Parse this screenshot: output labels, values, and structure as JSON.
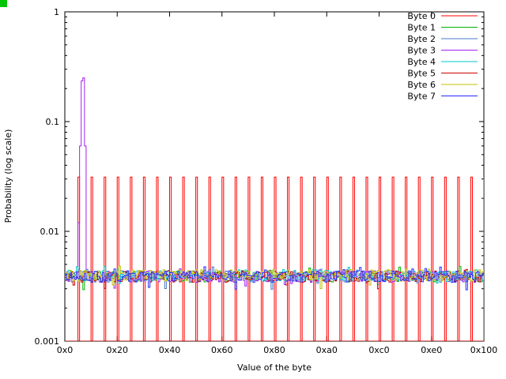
{
  "chart_data": {
    "type": "line",
    "title": "",
    "xlabel": "Value of the byte",
    "ylabel": "Probability (log scale)",
    "x_range": [
      0,
      256
    ],
    "y_log_range": [
      0.001,
      1
    ],
    "grid": false,
    "legend_position": "top-right-inside",
    "x_ticks": [
      {
        "v": 0,
        "label": "0x0"
      },
      {
        "v": 32,
        "label": "0x20"
      },
      {
        "v": 64,
        "label": "0x40"
      },
      {
        "v": 96,
        "label": "0x60"
      },
      {
        "v": 128,
        "label": "0x80"
      },
      {
        "v": 160,
        "label": "0xa0"
      },
      {
        "v": 192,
        "label": "0xc0"
      },
      {
        "v": 224,
        "label": "0xe0"
      },
      {
        "v": 256,
        "label": "0x100"
      }
    ],
    "y_ticks": [
      {
        "v": 1,
        "label": "1"
      },
      {
        "v": 0.1,
        "label": "0.1"
      },
      {
        "v": 0.01,
        "label": "0.01"
      },
      {
        "v": 0.001,
        "label": "0.001"
      }
    ],
    "series": [
      {
        "name": "Byte 0",
        "color": "#ff0000",
        "model": "spikes",
        "period": 8,
        "peak": 0.03125,
        "floor": 0.0006,
        "note": "probability 1/32 on every multiple of 8, ~0 elsewhere"
      },
      {
        "name": "Byte 1",
        "color": "#00b400",
        "model": "uniform-noise",
        "mean": 0.0039,
        "noise": 0.12,
        "seed": 11
      },
      {
        "name": "Byte 2",
        "color": "#4878c8",
        "model": "uniform-noise",
        "mean": 0.0039,
        "noise": 0.12,
        "seed": 22
      },
      {
        "name": "Byte 3",
        "color": "#a020f0",
        "model": "uniform-noise",
        "mean": 0.0039,
        "noise": 0.12,
        "seed": 33,
        "overrides": {
          "8": 0.012,
          "9": 0.06,
          "10": 0.235,
          "11": 0.25,
          "12": 0.06,
          "13": 0.0045
        },
        "note": "sharp peak ~0.25 around byte value 0x0a with shoulders at ~0.06"
      },
      {
        "name": "Byte 4",
        "color": "#00c8c8",
        "model": "uniform-noise",
        "mean": 0.004,
        "noise": 0.12,
        "seed": 44
      },
      {
        "name": "Byte 5",
        "color": "#cd0000",
        "model": "uniform-noise",
        "mean": 0.0039,
        "noise": 0.12,
        "seed": 55
      },
      {
        "name": "Byte 6",
        "color": "#c0c000",
        "model": "uniform-noise",
        "mean": 0.004,
        "noise": 0.12,
        "seed": 66
      },
      {
        "name": "Byte 7",
        "color": "#2828ff",
        "model": "uniform-noise",
        "mean": 0.0039,
        "noise": 0.12,
        "seed": 77
      }
    ],
    "uniform_band_level": 0.0039,
    "spike_peak_level": 0.03125,
    "byte3_peak_level": 0.25
  },
  "artifact": {
    "color": "#00c400"
  }
}
